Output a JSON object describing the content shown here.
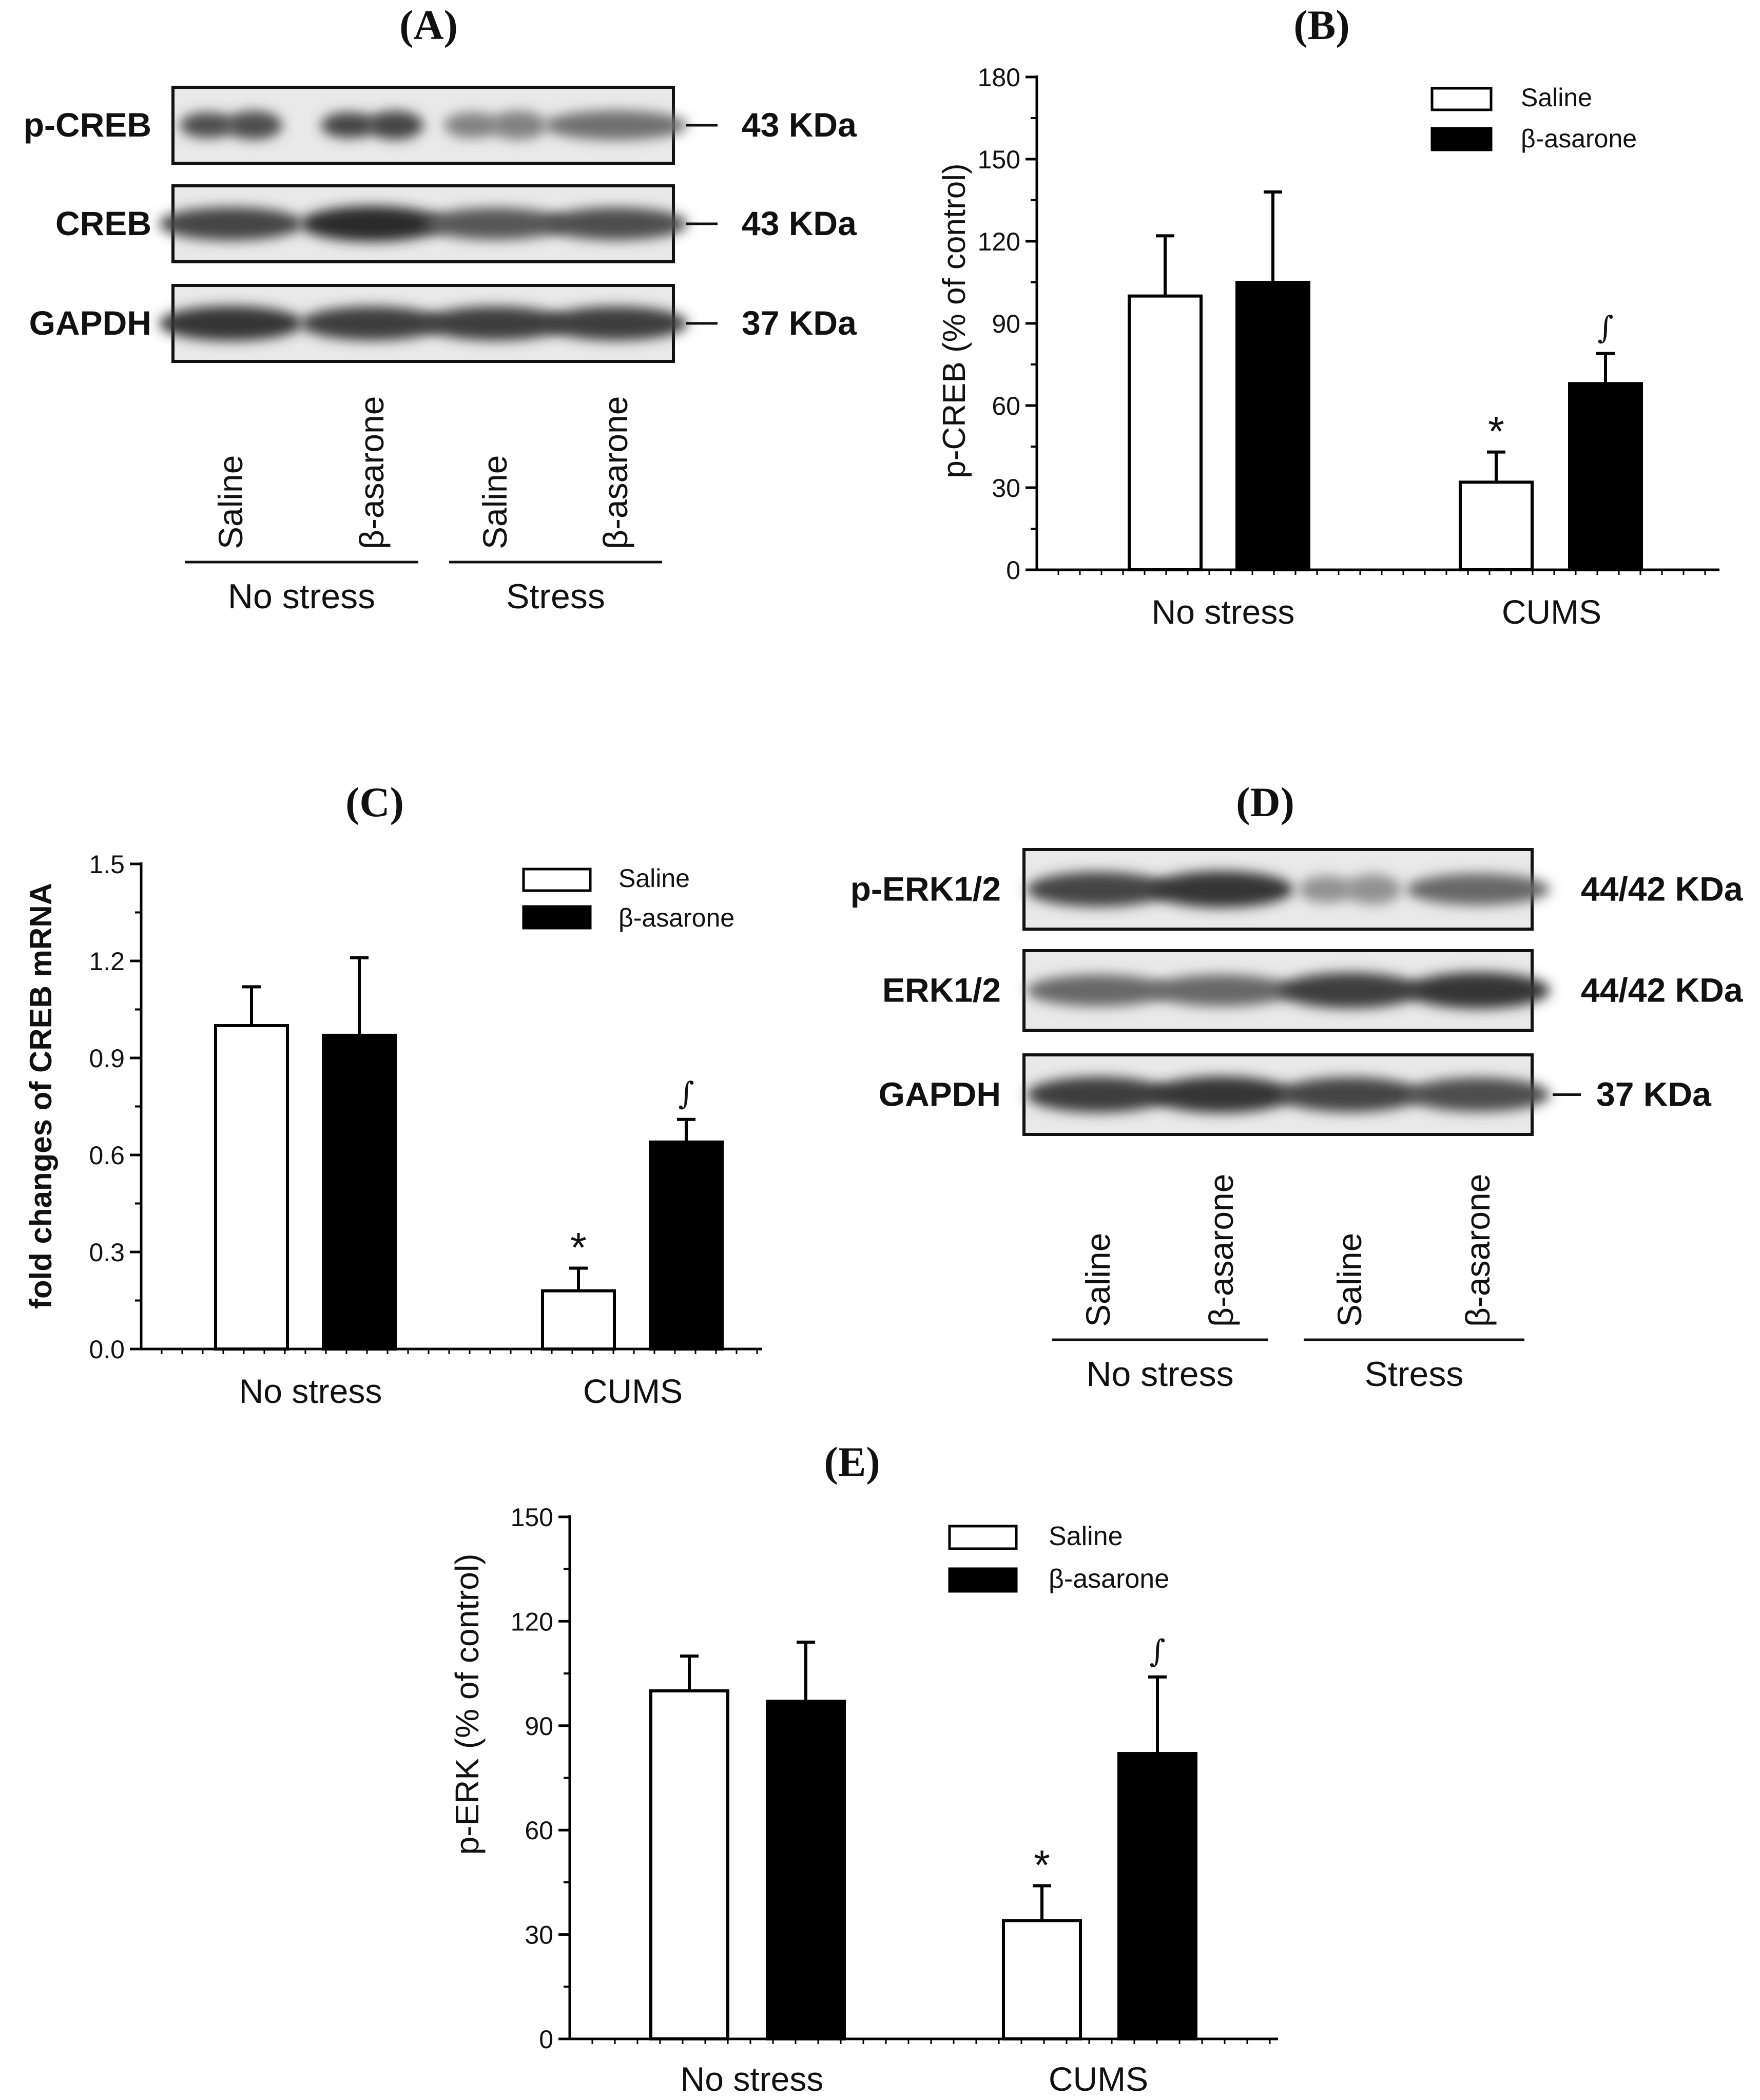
{
  "panels": {
    "A": "(A)",
    "B": "(B)",
    "C": "(C)",
    "D": "(D)",
    "E": "(E)"
  },
  "blot_a": {
    "rows": [
      {
        "label": "p-CREB",
        "size": "43 KDa",
        "bands": [
          {
            "intensity": 0.75,
            "split": true
          },
          {
            "intensity": 0.8,
            "split": true
          },
          {
            "intensity": 0.45,
            "split": true
          },
          {
            "intensity": 0.55,
            "split": false
          }
        ]
      },
      {
        "label": "CREB",
        "size": "43 KDa",
        "bands": [
          {
            "intensity": 0.8,
            "split": false
          },
          {
            "intensity": 0.95,
            "split": false
          },
          {
            "intensity": 0.7,
            "split": false
          },
          {
            "intensity": 0.75,
            "split": false
          }
        ]
      },
      {
        "label": "GAPDH",
        "size": "37 KDa",
        "bands": [
          {
            "intensity": 0.9,
            "split": false
          },
          {
            "intensity": 0.85,
            "split": false
          },
          {
            "intensity": 0.85,
            "split": false
          },
          {
            "intensity": 0.85,
            "split": false
          }
        ]
      }
    ],
    "lanes": [
      "Saline",
      "β-asarone",
      "Saline",
      "β-asarone"
    ],
    "groups": [
      "No stress",
      "Stress"
    ]
  },
  "blot_d": {
    "rows": [
      {
        "label": "p-ERK1/2",
        "size": "44/42 KDa",
        "bands": [
          {
            "intensity": 0.8,
            "split": false
          },
          {
            "intensity": 0.9,
            "split": false
          },
          {
            "intensity": 0.35,
            "split": true
          },
          {
            "intensity": 0.6,
            "split": false
          }
        ]
      },
      {
        "label": "ERK1/2",
        "size": "44/42 KDa",
        "bands": [
          {
            "intensity": 0.6,
            "split": false
          },
          {
            "intensity": 0.6,
            "split": false
          },
          {
            "intensity": 0.85,
            "split": false
          },
          {
            "intensity": 0.9,
            "split": false
          }
        ]
      },
      {
        "label": "GAPDH",
        "size": "37 KDa",
        "bands": [
          {
            "intensity": 0.85,
            "split": false
          },
          {
            "intensity": 0.9,
            "split": false
          },
          {
            "intensity": 0.8,
            "split": false
          },
          {
            "intensity": 0.75,
            "split": false
          }
        ]
      }
    ],
    "lanes": [
      "Saline",
      "β-asarone",
      "Saline",
      "β-asarone"
    ],
    "groups": [
      "No stress",
      "Stress"
    ]
  },
  "chart_data": [
    {
      "panel": "B",
      "type": "bar",
      "title": "",
      "categories": [
        "No stress",
        "CUMS"
      ],
      "ylabel": "p-CREB (% of control)",
      "ylim": [
        0,
        180
      ],
      "yticks": [
        "0",
        "30",
        "60",
        "90",
        "120",
        "150",
        "180"
      ],
      "series": [
        {
          "name": "Saline",
          "color": "#ffffff",
          "values": [
            100,
            32
          ],
          "errors": [
            22,
            11
          ],
          "marks": [
            "",
            "*"
          ]
        },
        {
          "name": "β-asarone",
          "color": "#000000",
          "values": [
            105,
            68
          ],
          "errors": [
            33,
            11
          ],
          "marks": [
            "",
            "∫"
          ]
        }
      ],
      "legend": "top-right"
    },
    {
      "panel": "C",
      "type": "bar",
      "title": "",
      "categories": [
        "No stress",
        "CUMS"
      ],
      "ylabel": "fold changes of CREB mRNA",
      "ylim": [
        0,
        1.5
      ],
      "yticks": [
        "0.0",
        "0.3",
        "0.6",
        "0.9",
        "1.2",
        "1.5"
      ],
      "series": [
        {
          "name": "Saline",
          "color": "#ffffff",
          "values": [
            1.0,
            0.18
          ],
          "errors": [
            0.12,
            0.07
          ],
          "marks": [
            "",
            "*"
          ]
        },
        {
          "name": "β-asarone",
          "color": "#000000",
          "values": [
            0.97,
            0.64
          ],
          "errors": [
            0.24,
            0.07
          ],
          "marks": [
            "",
            "∫"
          ]
        }
      ],
      "legend": "top-right"
    },
    {
      "panel": "E",
      "type": "bar",
      "title": "",
      "categories": [
        "No stress",
        "CUMS"
      ],
      "ylabel": "p-ERK (% of control)",
      "ylim": [
        0,
        150
      ],
      "yticks": [
        "0",
        "30",
        "60",
        "90",
        "120",
        "150"
      ],
      "series": [
        {
          "name": "Saline",
          "color": "#ffffff",
          "values": [
            100,
            34
          ],
          "errors": [
            10,
            10
          ],
          "marks": [
            "",
            "*"
          ]
        },
        {
          "name": "β-asarone",
          "color": "#000000",
          "values": [
            97,
            82
          ],
          "errors": [
            17,
            22
          ],
          "marks": [
            "",
            "∫"
          ]
        }
      ],
      "legend": "top-right"
    }
  ]
}
